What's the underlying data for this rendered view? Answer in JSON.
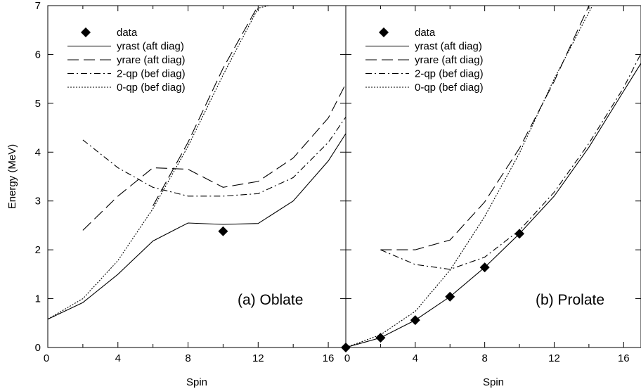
{
  "chart_data": [
    {
      "type": "line",
      "panel_label": "(a) Oblate",
      "xlabel": "Spin",
      "ylabel": "Energy (MeV)",
      "xlim": [
        0,
        17
      ],
      "ylim": [
        0,
        7
      ],
      "x_ticks": [
        "0",
        "4",
        "8",
        "12",
        "16"
      ],
      "y_ticks": [
        "0",
        "1",
        "2",
        "3",
        "4",
        "5",
        "6",
        "7"
      ],
      "legend_position": "top-left",
      "legend": [
        {
          "key": "data",
          "label": "data"
        },
        {
          "key": "yrast",
          "label": "yrast (aft diag)"
        },
        {
          "key": "yrare",
          "label": "yrare (aft diag)"
        },
        {
          "key": "qp2",
          "label": "2-qp (bef diag)"
        },
        {
          "key": "qp0",
          "label": "0-qp (bef diag)"
        }
      ],
      "data_points": [
        {
          "x": 10,
          "y": 2.38
        }
      ],
      "series": [
        {
          "key": "yrast",
          "style": "solid",
          "x": [
            0,
            2,
            4,
            6,
            8,
            10,
            12,
            14,
            16,
            17
          ],
          "y": [
            0.58,
            0.92,
            1.5,
            2.18,
            2.55,
            2.52,
            2.54,
            3.0,
            3.82,
            4.38
          ]
        },
        {
          "key": "yrare",
          "style": "long-dash",
          "x": [
            2,
            4,
            6,
            8,
            10,
            12,
            14,
            16,
            17
          ],
          "y": [
            2.4,
            3.1,
            3.68,
            3.65,
            3.28,
            3.4,
            3.88,
            4.7,
            5.4
          ]
        },
        {
          "key": "qp2",
          "style": "dash-dot",
          "x": [
            2,
            4,
            6,
            8,
            10,
            12,
            14,
            16,
            17
          ],
          "y": [
            4.25,
            3.68,
            3.28,
            3.1,
            3.1,
            3.15,
            3.48,
            4.2,
            4.72
          ]
        },
        {
          "key": "qp0",
          "style": "dotted",
          "x": [
            0,
            2,
            4,
            6,
            8,
            10,
            12,
            12.6
          ],
          "y": [
            0.58,
            1.0,
            1.78,
            2.84,
            4.12,
            5.58,
            6.95,
            7.0
          ]
        },
        {
          "key": "qp0_aft",
          "style": "long-dash",
          "x": [
            6,
            8,
            10,
            12,
            12.3
          ],
          "y": [
            2.9,
            4.2,
            5.72,
            7.0,
            7.0
          ]
        }
      ]
    },
    {
      "type": "line",
      "panel_label": "(b) Prolate",
      "xlabel": "Spin",
      "ylabel": "",
      "xlim": [
        0,
        17
      ],
      "ylim": [
        0,
        7
      ],
      "x_ticks": [
        "0",
        "4",
        "8",
        "12",
        "16"
      ],
      "y_ticks": [],
      "legend_position": "top-left",
      "legend": [
        {
          "key": "data",
          "label": "data"
        },
        {
          "key": "yrast",
          "label": "yrast (aft diag)"
        },
        {
          "key": "yrare",
          "label": "yrare (aft diag)"
        },
        {
          "key": "qp2",
          "label": "2-qp (bef diag)"
        },
        {
          "key": "qp0",
          "label": "0-qp (bef diag)"
        }
      ],
      "data_points": [
        {
          "x": 0,
          "y": 0
        },
        {
          "x": 2,
          "y": 0.2
        },
        {
          "x": 4,
          "y": 0.56
        },
        {
          "x": 6,
          "y": 1.04
        },
        {
          "x": 8,
          "y": 1.64
        },
        {
          "x": 10,
          "y": 2.33
        }
      ],
      "series": [
        {
          "key": "yrast",
          "style": "solid",
          "x": [
            0,
            2,
            4,
            6,
            8,
            10,
            12,
            14,
            16,
            17
          ],
          "y": [
            0.0,
            0.2,
            0.56,
            1.04,
            1.64,
            2.33,
            3.1,
            4.1,
            5.25,
            5.82
          ]
        },
        {
          "key": "yrare",
          "style": "long-dash",
          "x": [
            2,
            4,
            6,
            8,
            10,
            12,
            14,
            14.5
          ],
          "y": [
            2.0,
            2.0,
            2.2,
            2.98,
            4.08,
            5.45,
            7.0,
            7.0
          ]
        },
        {
          "key": "qp2",
          "style": "dash-dot",
          "x": [
            2,
            4,
            6,
            8,
            10,
            12,
            14,
            16,
            17
          ],
          "y": [
            2.0,
            1.7,
            1.6,
            1.85,
            2.4,
            3.18,
            4.18,
            5.32,
            6.02
          ]
        },
        {
          "key": "qp0",
          "style": "dotted",
          "x": [
            0,
            2,
            4,
            6,
            8,
            10,
            12,
            14.2
          ],
          "y": [
            0.0,
            0.26,
            0.74,
            1.58,
            2.68,
            3.98,
            5.5,
            7.0
          ]
        }
      ]
    }
  ]
}
